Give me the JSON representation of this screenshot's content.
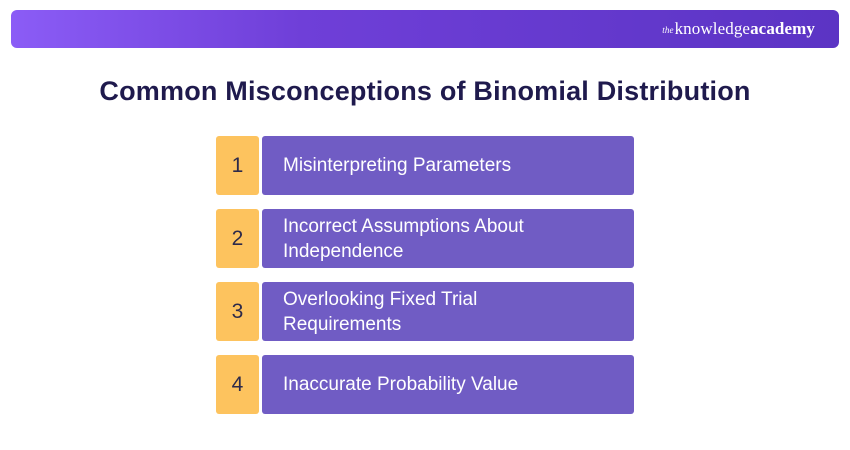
{
  "brand": {
    "prefix": "the",
    "word1": "knowledge",
    "word2": "academy"
  },
  "title": "Common Misconceptions of Binomial Distribution",
  "items": [
    {
      "number": "1",
      "label": "Misinterpreting Parameters"
    },
    {
      "number": "2",
      "label": "Incorrect Assumptions About Independence"
    },
    {
      "number": "3",
      "label": "Overlooking Fixed Trial Requirements"
    },
    {
      "number": "4",
      "label": "Inaccurate Probability Value"
    }
  ],
  "colors": {
    "banner_start": "#8b5cf6",
    "banner_end": "#5b34c4",
    "title": "#1f1a4d",
    "number_box": "#fdc35e",
    "label_box": "#705cc4"
  }
}
